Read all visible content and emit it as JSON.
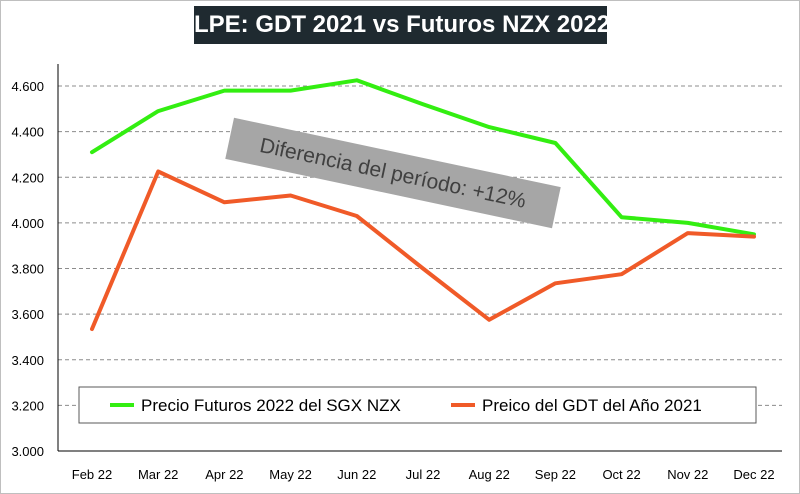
{
  "chart_data": {
    "type": "line",
    "title": "LPE: GDT 2021 vs Futuros NZX 2022",
    "categories": [
      "Feb 22",
      "Mar 22",
      "Apr 22",
      "May 22",
      "Jun 22",
      "Jul 22",
      "Aug 22",
      "Sep 22",
      "Oct 22",
      "Nov 22",
      "Dec 22"
    ],
    "series": [
      {
        "name": "Precio Futuros 2022 del SGX NZX",
        "color": "#33ee11",
        "values": [
          4310,
          4490,
          4580,
          4580,
          4625,
          4520,
          4420,
          4350,
          4025,
          4000,
          3950
        ]
      },
      {
        "name": "Preico del GDT del Año 2021",
        "color": "#f05a28",
        "values": [
          3535,
          4225,
          4090,
          4120,
          4030,
          3800,
          3575,
          3735,
          3775,
          3955,
          3940
        ]
      }
    ],
    "yticks": [
      "3.000",
      "3.200",
      "3.400",
      "3.600",
      "3.800",
      "4.000",
      "4.200",
      "4.400",
      "4.600"
    ],
    "ylim": [
      3000,
      4700
    ],
    "grid": true,
    "legend_position": "bottom",
    "annotation": "Diferencia del período: +12%"
  }
}
